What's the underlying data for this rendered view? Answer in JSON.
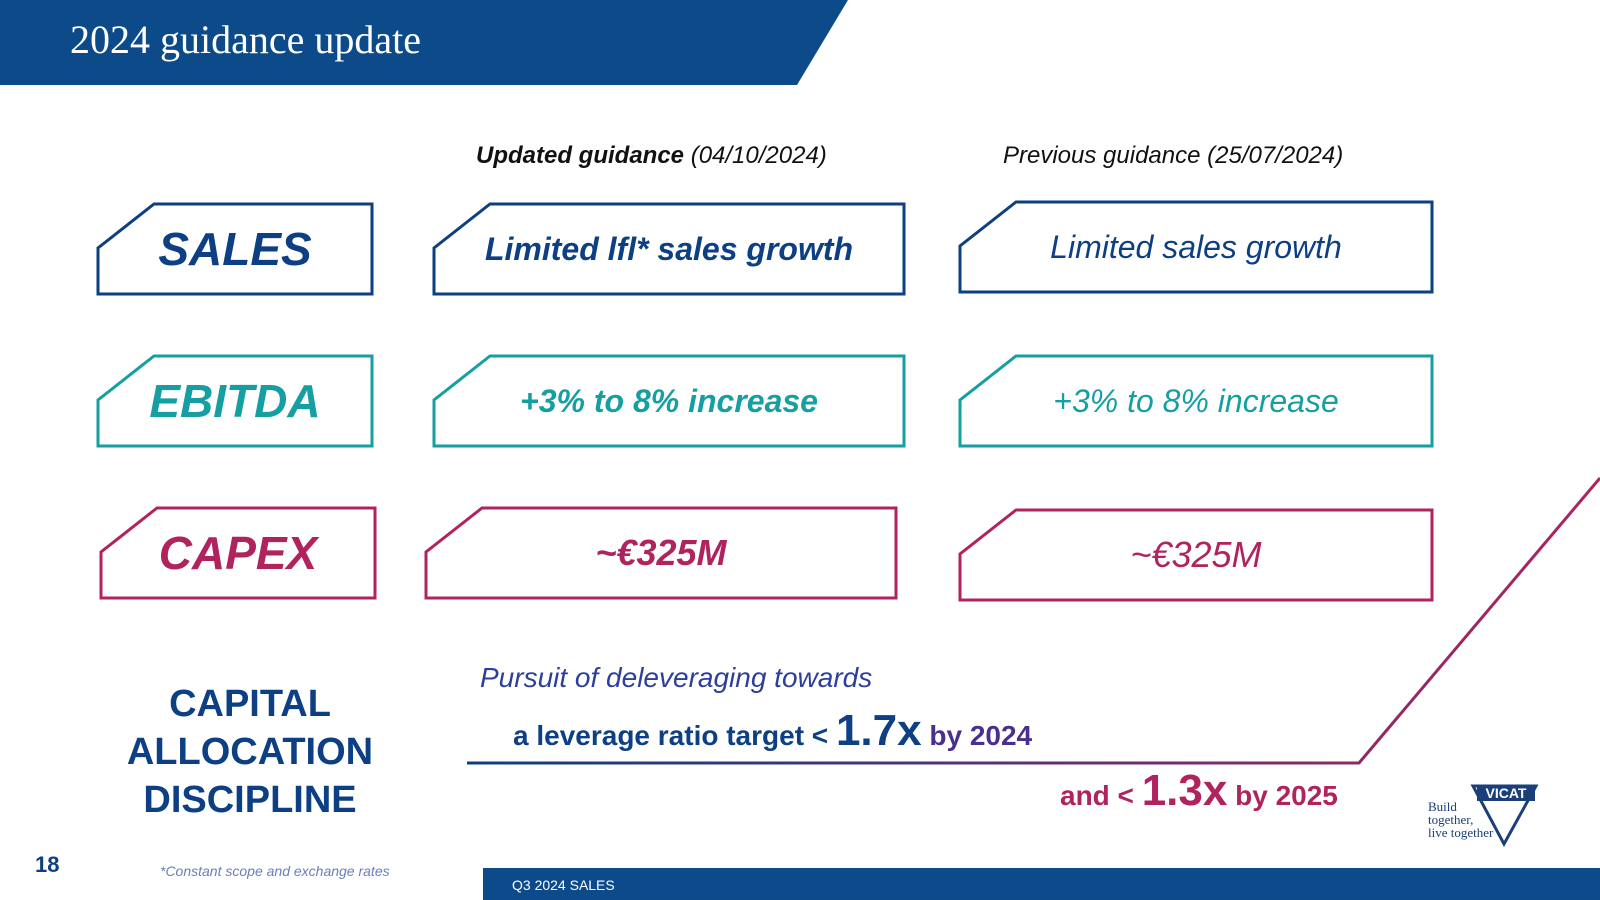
{
  "title": "2024 guidance update",
  "columns": {
    "updated": {
      "bold": "Updated guidance",
      "date": " (04/10/2024)"
    },
    "previous": {
      "text": "Previous guidance (25/07/2024)"
    }
  },
  "rows": [
    {
      "label": "SALES",
      "updated": "Limited lfl* sales growth",
      "previous": "Limited sales growth",
      "color": "#0c3f83"
    },
    {
      "label": "EBITDA",
      "updated": "+3% to 8% increase",
      "previous": "+3% to 8% increase",
      "color": "#169fa2"
    },
    {
      "label": "CAPEX",
      "updated": "~€325M",
      "previous": "~€325M",
      "color": "#b0235f"
    }
  ],
  "capital_allocation": {
    "label_lines": [
      "CAPITAL",
      "ALLOCATION",
      "DISCIPLINE"
    ],
    "line1": "Pursuit of deleveraging towards",
    "line2_prefix": "a leverage ratio target < ",
    "line2_value": "1.7x",
    "line2_suffix": " by 2024",
    "line3_prefix": "and < ",
    "line3_value": "1.3x",
    "line3_suffix": " by 2025"
  },
  "footnote": "*Constant scope and exchange rates",
  "page_number": "18",
  "footer_text": "Q3 2024 SALES",
  "logo": {
    "brand": "VICAT",
    "slogan_lines": [
      "Build",
      "together,",
      "live together"
    ]
  },
  "colors": {
    "navy": "#0c3f83",
    "teal": "#169fa2",
    "magenta": "#b0235f",
    "footer": "#0c4a8a"
  }
}
